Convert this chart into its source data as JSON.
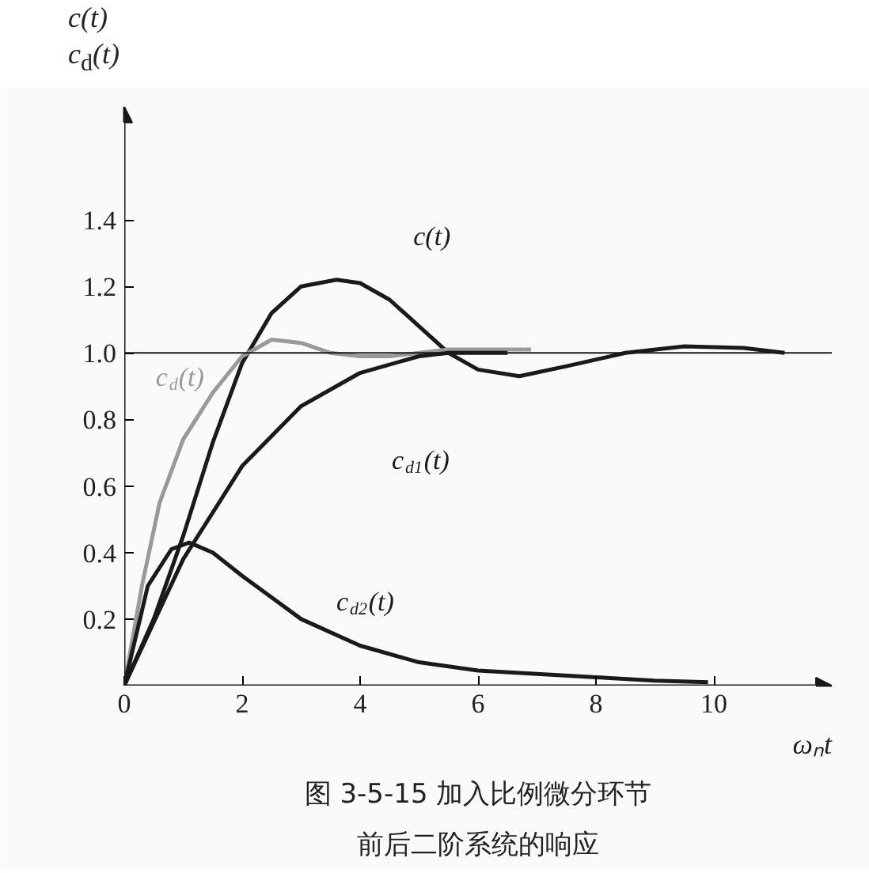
{
  "chart_data": {
    "type": "line",
    "title": "图 3-5-15 加入比例微分环节前后二阶系统的响应",
    "xlabel": "ωₙt",
    "ylabel": "c(t)\nc$_{d}$(t)",
    "xlim": [
      0,
      12
    ],
    "ylim": [
      0,
      1.74
    ],
    "xticks": [
      0,
      2,
      4,
      6,
      8,
      10
    ],
    "yticks": [
      {
        "value": 0.2,
        "label": "0.2"
      },
      {
        "value": 0.4,
        "label": "0.4"
      },
      {
        "value": 0.6,
        "label": "0.6"
      },
      {
        "value": 0.8,
        "label": "0.8"
      },
      {
        "value": 1.0,
        "label": "1.0"
      },
      {
        "value": 1.2,
        "label": "1.2"
      },
      {
        "value": 1.4,
        "label": "1.4"
      }
    ],
    "ref_lines": [
      {
        "axis": "y",
        "value": 1.0,
        "color": "#1a1a1a"
      }
    ],
    "series": [
      {
        "name": "c(t)",
        "color": "#1a1a1a",
        "x": [
          0,
          0.5,
          1,
          1.5,
          2,
          2.5,
          3,
          3.6,
          4,
          4.5,
          5,
          5.5,
          6,
          6.7,
          7.5,
          8.5,
          9.5,
          10.5,
          11.2
        ],
        "values": [
          0,
          0.2,
          0.45,
          0.73,
          0.97,
          1.12,
          1.2,
          1.22,
          1.21,
          1.16,
          1.08,
          1.0,
          0.95,
          0.93,
          0.96,
          1.0,
          1.02,
          1.015,
          1.0
        ]
      },
      {
        "name": "c$_{d}$(t)",
        "color": "#999999",
        "x": [
          0,
          0.3,
          0.6,
          1,
          1.5,
          2,
          2.5,
          3,
          3.5,
          4,
          4.5,
          5,
          5.5,
          6.9
        ],
        "values": [
          0,
          0.3,
          0.55,
          0.74,
          0.88,
          0.99,
          1.04,
          1.03,
          1.0,
          0.99,
          0.99,
          1.0,
          1.01,
          1.01
        ]
      },
      {
        "name": "c$_{d1}$(t)",
        "color": "#1a1a1a",
        "x": [
          0,
          1,
          2,
          3,
          4,
          5,
          5.5,
          6.5
        ],
        "values": [
          0,
          0.38,
          0.66,
          0.84,
          0.94,
          0.99,
          1.0,
          1.0
        ]
      },
      {
        "name": "c$_{d2}$(t)",
        "color": "#1a1a1a",
        "x": [
          0,
          0.4,
          0.8,
          1.1,
          1.5,
          2,
          3,
          4,
          5,
          6,
          7,
          8,
          9,
          9.9
        ],
        "values": [
          0,
          0.3,
          0.41,
          0.43,
          0.4,
          0.33,
          0.2,
          0.12,
          0.07,
          0.045,
          0.035,
          0.025,
          0.015,
          0.01
        ]
      }
    ]
  }
}
